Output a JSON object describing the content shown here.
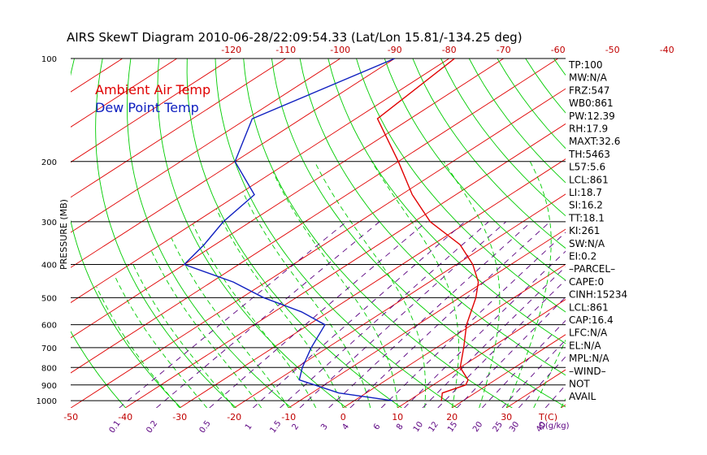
{
  "chart_data": {
    "type": "line",
    "title": "AIRS SkewT Diagram 2010-06-28/22:09:54.33 (Lat/Lon 15.81/-134.25 deg)",
    "ylabel": "PRESSURE (MB)",
    "y_scale": "log",
    "ylim": [
      1050,
      100
    ],
    "pressure_ticks": [
      100,
      200,
      300,
      400,
      500,
      600,
      700,
      800,
      900,
      1000
    ],
    "top_temp_ticks": [
      -120,
      -110,
      -100,
      -90,
      -80,
      -70,
      -60,
      -50,
      -40
    ],
    "bottom_temp_ticks": [
      -50,
      -40,
      -30,
      -20,
      -10,
      0,
      10,
      20,
      30
    ],
    "bottom_temp_unit": "T(C)",
    "mixing_ratio_ticks": [
      "0.1",
      "0.2",
      "0.5",
      "1",
      "1.5",
      "2",
      "3",
      "4",
      "6",
      "8",
      "10",
      "12",
      "15",
      "20",
      "25",
      "30",
      "40"
    ],
    "mixing_ratio_unit": "Q(g/kg)",
    "legend": [
      {
        "name": "Ambient Air Temp",
        "color": "#e00000"
      },
      {
        "name": "Dew Point Temp",
        "color": "#1020c0"
      }
    ],
    "series": [
      {
        "name": "Ambient Air Temp",
        "color": "#e00000",
        "points": [
          {
            "p": 100,
            "t": -79
          },
          {
            "p": 150,
            "t": -76
          },
          {
            "p": 200,
            "t": -60
          },
          {
            "p": 250,
            "t": -48
          },
          {
            "p": 300,
            "t": -37
          },
          {
            "p": 350,
            "t": -25
          },
          {
            "p": 400,
            "t": -17
          },
          {
            "p": 450,
            "t": -11
          },
          {
            "p": 500,
            "t": -7
          },
          {
            "p": 600,
            "t": -1
          },
          {
            "p": 700,
            "t": 5
          },
          {
            "p": 800,
            "t": 10
          },
          {
            "p": 870,
            "t": 15
          },
          {
            "p": 900,
            "t": 16
          },
          {
            "p": 950,
            "t": 14
          },
          {
            "p": 1000,
            "t": 16
          }
        ]
      },
      {
        "name": "Dew Point Temp",
        "color": "#1020c0",
        "points": [
          {
            "p": 100,
            "t": -90
          },
          {
            "p": 150,
            "t": -99
          },
          {
            "p": 200,
            "t": -90
          },
          {
            "p": 250,
            "t": -77
          },
          {
            "p": 300,
            "t": -75
          },
          {
            "p": 350,
            "t": -72
          },
          {
            "p": 400,
            "t": -70
          },
          {
            "p": 450,
            "t": -56
          },
          {
            "p": 500,
            "t": -46
          },
          {
            "p": 550,
            "t": -35
          },
          {
            "p": 600,
            "t": -27
          },
          {
            "p": 700,
            "t": -23
          },
          {
            "p": 800,
            "t": -19
          },
          {
            "p": 870,
            "t": -16
          },
          {
            "p": 950,
            "t": -5
          },
          {
            "p": 1000,
            "t": 7
          }
        ]
      }
    ],
    "background_lines": {
      "isotherms": {
        "color": "#e00000",
        "min_t": -200,
        "max_t": 70,
        "step": 10
      },
      "dry_adiabats": {
        "color": "#00cc00",
        "min_theta_k": 190,
        "max_theta_k": 520,
        "step": 10
      },
      "moist_adiabats": {
        "color": "#00cc00",
        "min_t": -30,
        "max_t": 40,
        "step": 5
      },
      "mixing_ratio_lines": {
        "color": "#5a0080"
      }
    }
  },
  "indices": [
    "TP:100",
    "MW:N/A",
    "FRZ:547",
    "WB0:861",
    "PW:12.39",
    "RH:17.9",
    "MAXT:32.6",
    "TH:5463",
    "L57:5.6",
    "LCL:861",
    "LI:18.7",
    "SI:16.2",
    "TT:18.1",
    "KI:261",
    "SW:N/A",
    "EI:0.2",
    "–PARCEL–",
    "CAPE:0",
    "CINH:15234",
    "LCL:861",
    "CAP:16.4",
    "LFC:N/A",
    "EL:N/A",
    "MPL:N/A",
    "–WIND–",
    "NOT",
    "AVAIL"
  ]
}
